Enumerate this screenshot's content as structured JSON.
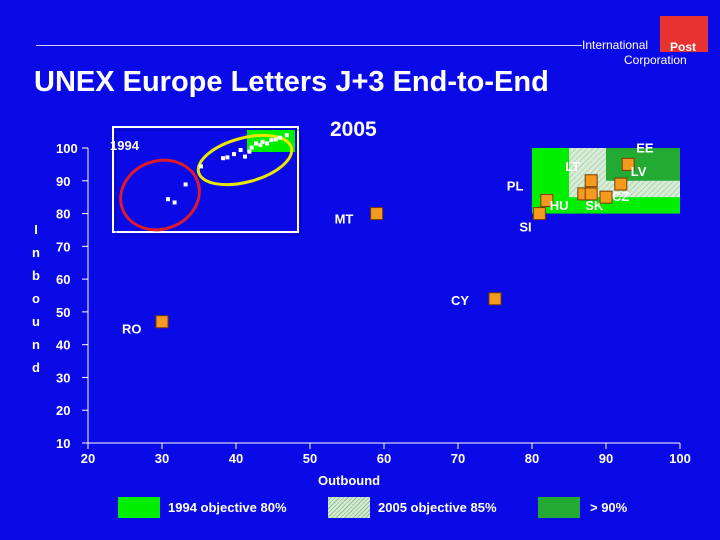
{
  "header": {
    "logo_line1": "International",
    "logo_post": "Post",
    "logo_line2": "Corporation",
    "title": "UNEX Europe Letters J+3 End-to-End"
  },
  "labels": {
    "year_2005": "2005",
    "year_1994": "1994"
  },
  "legend": {
    "items": [
      {
        "label": "1994 objective 80%",
        "color": "#00ee00",
        "pattern": "solid"
      },
      {
        "label": "2005 objective 85%",
        "color": "#d8ecd8",
        "pattern": "hatched"
      },
      {
        "label": "> 90%",
        "color": "#22aa33",
        "pattern": "solid"
      }
    ]
  },
  "colors": {
    "background": "#0a0ae6",
    "marker": "#f39a1f",
    "ellipse_1994": "#dd1b2a",
    "ellipse_2005": "#e8e800",
    "zone_80": "#00ee00",
    "zone_85": "#d8ecd8",
    "zone_90": "#22aa33"
  },
  "chart_data": {
    "type": "scatter",
    "title": "UNEX Europe Letters J+3 End-to-End",
    "xlabel": "Outbound",
    "ylabel": "Inbound",
    "xlim": [
      20,
      100
    ],
    "ylim": [
      10,
      100
    ],
    "x_ticks": [
      20,
      30,
      40,
      50,
      60,
      70,
      80,
      90,
      100
    ],
    "y_ticks": [
      10,
      20,
      30,
      40,
      50,
      60,
      70,
      80,
      90,
      100
    ],
    "grid": false,
    "legend_position": "bottom",
    "zones": [
      {
        "name": "1994 objective 80%",
        "x_min": 80,
        "x_max": 100,
        "y_min": 80,
        "y_max": 100
      },
      {
        "name": "2005 objective 85%",
        "x_min": 85,
        "x_max": 100,
        "y_min": 85,
        "y_max": 100
      },
      {
        "name": "> 90%",
        "x_min": 90,
        "x_max": 100,
        "y_min": 90,
        "y_max": 100
      }
    ],
    "series": [
      {
        "name": "2005",
        "points": [
          {
            "label": "EE",
            "x": 93,
            "y": 95
          },
          {
            "label": "LT",
            "x": 88,
            "y": 90
          },
          {
            "label": "LV",
            "x": 92,
            "y": 89
          },
          {
            "label": "PL",
            "x": 82,
            "y": 84
          },
          {
            "label": "HU",
            "x": 87,
            "y": 86
          },
          {
            "label": "SK",
            "x": 88,
            "y": 86
          },
          {
            "label": "CZ",
            "x": 90,
            "y": 85
          },
          {
            "label": "SI",
            "x": 81,
            "y": 80
          },
          {
            "label": "MT",
            "x": 59,
            "y": 80
          },
          {
            "label": "CY",
            "x": 75,
            "y": 54
          },
          {
            "label": "RO",
            "x": 30,
            "y": 47
          }
        ]
      }
    ],
    "inset": {
      "name": "1994",
      "points_left": [
        {
          "x": 25,
          "y": 40
        },
        {
          "x": 28,
          "y": 36
        },
        {
          "x": 33,
          "y": 58
        },
        {
          "x": 40,
          "y": 80
        }
      ],
      "points_right": [
        {
          "x": 50,
          "y": 90
        },
        {
          "x": 52,
          "y": 91
        },
        {
          "x": 55,
          "y": 95
        },
        {
          "x": 58,
          "y": 100
        },
        {
          "x": 60,
          "y": 92
        },
        {
          "x": 62,
          "y": 98
        },
        {
          "x": 63,
          "y": 103
        },
        {
          "x": 65,
          "y": 108
        },
        {
          "x": 67,
          "y": 106
        },
        {
          "x": 68,
          "y": 110
        },
        {
          "x": 70,
          "y": 108
        },
        {
          "x": 72,
          "y": 112
        },
        {
          "x": 74,
          "y": 113
        },
        {
          "x": 76,
          "y": 115
        },
        {
          "x": 79,
          "y": 118
        }
      ]
    }
  }
}
